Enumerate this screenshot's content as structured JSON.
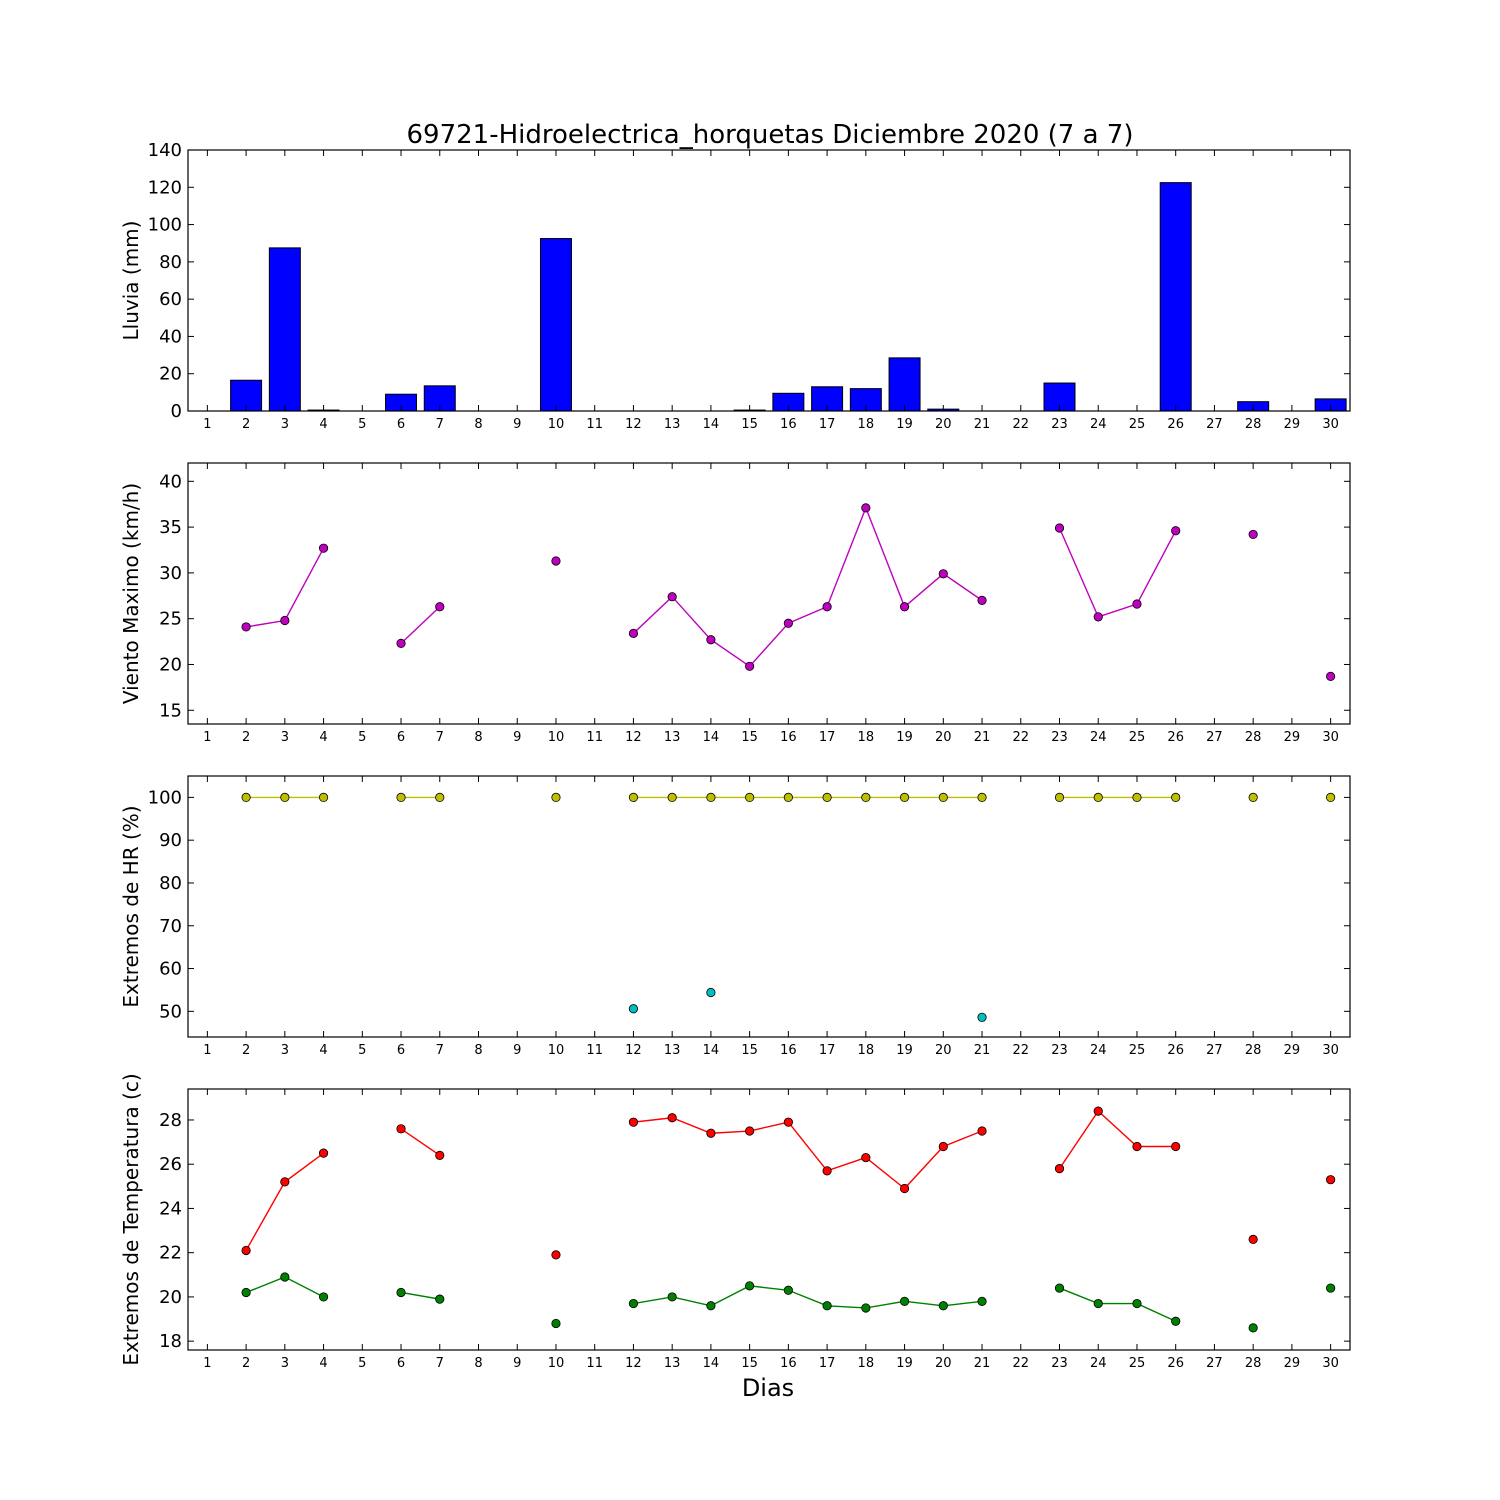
{
  "title": "69721-Hidroelectrica_horquetas Diciembre 2020  (7 a 7)",
  "xlabel": "Dias",
  "colors": {
    "rain": "#0000ff",
    "wind": "#bf00bf",
    "hr_max": "#bfbf00",
    "hr_min": "#00bfbf",
    "temp_max": "#ff0000",
    "temp_min": "#008000"
  },
  "chart_data": [
    {
      "type": "bar",
      "ylabel": "Lluvia (mm)",
      "xlim": [
        0.5,
        30.5
      ],
      "ylim": [
        0,
        140
      ],
      "yticks": [
        0,
        20,
        40,
        60,
        80,
        100,
        120,
        140
      ],
      "xticks": [
        1,
        2,
        3,
        4,
        5,
        6,
        7,
        8,
        9,
        10,
        11,
        12,
        13,
        14,
        15,
        16,
        17,
        18,
        19,
        20,
        21,
        22,
        23,
        24,
        25,
        26,
        27,
        28,
        29,
        30
      ],
      "grid": false,
      "series": [
        {
          "x": [
            2,
            3,
            4,
            6,
            7,
            10,
            15,
            16,
            17,
            18,
            19,
            20,
            23,
            26,
            28,
            30
          ],
          "values": [
            16.5,
            87.5,
            0.5,
            9,
            13.5,
            92.5,
            0.5,
            9.5,
            13,
            12,
            28.5,
            1,
            15,
            122.5,
            5,
            6.5
          ]
        }
      ]
    },
    {
      "type": "line",
      "ylabel": "Viento Maximo (km/h)",
      "xlim": [
        0.5,
        30.5
      ],
      "ylim": [
        13.5,
        42
      ],
      "yticks": [
        15,
        20,
        25,
        30,
        35,
        40
      ],
      "xticks": [
        1,
        2,
        3,
        4,
        5,
        6,
        7,
        8,
        9,
        10,
        11,
        12,
        13,
        14,
        15,
        16,
        17,
        18,
        19,
        20,
        21,
        22,
        23,
        24,
        25,
        26,
        27,
        28,
        29,
        30
      ],
      "grid": false,
      "series": [
        {
          "x": [
            1,
            2,
            3,
            4,
            5,
            6,
            7,
            8,
            9,
            10,
            11,
            12,
            13,
            14,
            15,
            16,
            17,
            18,
            19,
            20,
            21,
            22,
            23,
            24,
            25,
            26,
            27,
            28,
            29,
            30
          ],
          "values": [
            null,
            24.1,
            24.8,
            32.7,
            null,
            22.3,
            26.3,
            null,
            null,
            31.3,
            null,
            23.4,
            27.4,
            22.7,
            19.8,
            24.5,
            26.3,
            37.1,
            26.3,
            29.9,
            27.0,
            null,
            34.9,
            25.2,
            26.6,
            34.6,
            null,
            34.2,
            null,
            18.7
          ]
        }
      ]
    },
    {
      "type": "line",
      "ylabel": "Extremos de HR (%)",
      "xlim": [
        0.5,
        30.5
      ],
      "ylim": [
        44,
        105
      ],
      "yticks": [
        50,
        60,
        70,
        80,
        90,
        100
      ],
      "xticks": [
        1,
        2,
        3,
        4,
        5,
        6,
        7,
        8,
        9,
        10,
        11,
        12,
        13,
        14,
        15,
        16,
        17,
        18,
        19,
        20,
        21,
        22,
        23,
        24,
        25,
        26,
        27,
        28,
        29,
        30
      ],
      "grid": false,
      "series": [
        {
          "key": "hr_max",
          "x": [
            1,
            2,
            3,
            4,
            5,
            6,
            7,
            8,
            9,
            10,
            11,
            12,
            13,
            14,
            15,
            16,
            17,
            18,
            19,
            20,
            21,
            22,
            23,
            24,
            25,
            26,
            27,
            28,
            29,
            30
          ],
          "values": [
            null,
            100,
            100,
            100,
            null,
            100,
            100,
            null,
            null,
            100,
            null,
            100,
            100,
            100,
            100,
            100,
            100,
            100,
            100,
            100,
            100,
            null,
            100,
            100,
            100,
            100,
            null,
            100,
            null,
            100
          ]
        },
        {
          "key": "hr_min",
          "x": [
            1,
            2,
            3,
            4,
            5,
            6,
            7,
            8,
            9,
            10,
            11,
            12,
            13,
            14,
            15,
            16,
            17,
            18,
            19,
            20,
            21,
            22,
            23,
            24,
            25,
            26,
            27,
            28,
            29,
            30
          ],
          "values": [
            null,
            null,
            null,
            null,
            null,
            null,
            null,
            null,
            null,
            null,
            null,
            50.6,
            null,
            54.4,
            null,
            null,
            null,
            null,
            null,
            null,
            48.6,
            null,
            null,
            null,
            null,
            null,
            null,
            null,
            null,
            null
          ]
        }
      ]
    },
    {
      "type": "line",
      "ylabel": "Extremos de Temperatura (c)",
      "xlim": [
        0.5,
        30.5
      ],
      "ylim": [
        17.6,
        29.4
      ],
      "yticks": [
        18,
        20,
        22,
        24,
        26,
        28
      ],
      "xticks": [
        1,
        2,
        3,
        4,
        5,
        6,
        7,
        8,
        9,
        10,
        11,
        12,
        13,
        14,
        15,
        16,
        17,
        18,
        19,
        20,
        21,
        22,
        23,
        24,
        25,
        26,
        27,
        28,
        29,
        30
      ],
      "grid": false,
      "series": [
        {
          "key": "temp_max",
          "x": [
            1,
            2,
            3,
            4,
            5,
            6,
            7,
            8,
            9,
            10,
            11,
            12,
            13,
            14,
            15,
            16,
            17,
            18,
            19,
            20,
            21,
            22,
            23,
            24,
            25,
            26,
            27,
            28,
            29,
            30
          ],
          "values": [
            null,
            22.1,
            25.2,
            26.5,
            null,
            27.6,
            26.4,
            null,
            null,
            21.9,
            null,
            27.9,
            28.1,
            27.4,
            27.5,
            27.9,
            25.7,
            26.3,
            24.9,
            26.8,
            27.5,
            null,
            25.8,
            28.4,
            26.8,
            26.8,
            null,
            22.6,
            null,
            25.3
          ]
        },
        {
          "key": "temp_min",
          "x": [
            1,
            2,
            3,
            4,
            5,
            6,
            7,
            8,
            9,
            10,
            11,
            12,
            13,
            14,
            15,
            16,
            17,
            18,
            19,
            20,
            21,
            22,
            23,
            24,
            25,
            26,
            27,
            28,
            29,
            30
          ],
          "values": [
            null,
            20.2,
            20.9,
            20.0,
            null,
            20.2,
            19.9,
            null,
            null,
            18.8,
            null,
            19.7,
            20.0,
            19.6,
            20.5,
            20.3,
            19.6,
            19.5,
            19.8,
            19.6,
            19.8,
            null,
            20.4,
            19.7,
            19.7,
            18.9,
            null,
            18.6,
            null,
            20.4
          ]
        }
      ]
    }
  ]
}
